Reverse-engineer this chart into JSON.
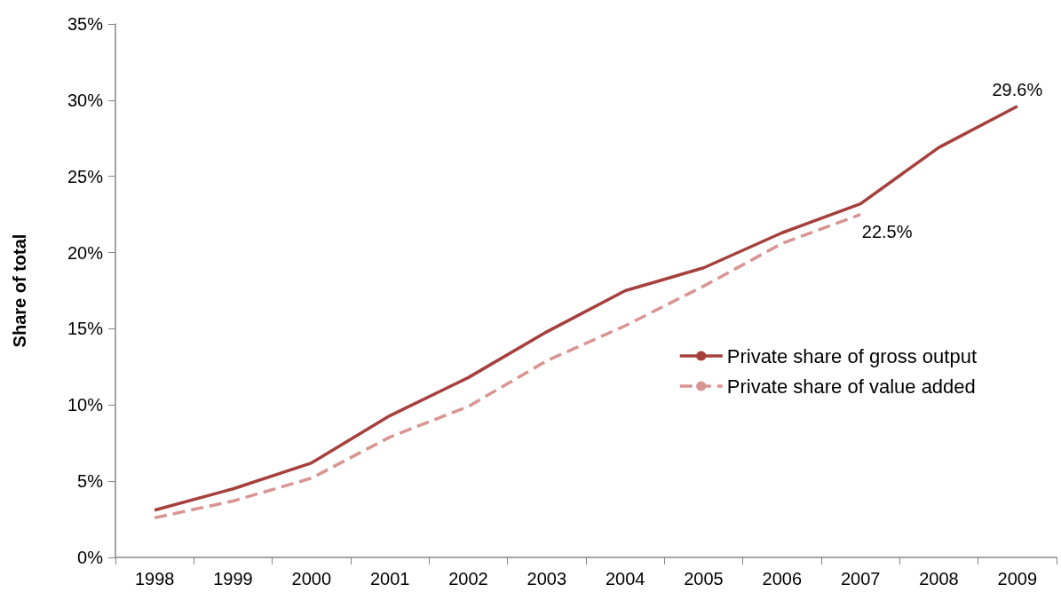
{
  "chart_data": {
    "type": "line",
    "ylabel": "Share of total",
    "categories": [
      "1998",
      "1999",
      "2000",
      "2001",
      "2002",
      "2003",
      "2004",
      "2005",
      "2006",
      "2007",
      "2008",
      "2009"
    ],
    "series": [
      {
        "name": "Private share of gross output",
        "color": "#a5403d",
        "line_style": "solid",
        "values": [
          3.1,
          4.5,
          6.2,
          9.3,
          11.8,
          14.8,
          17.5,
          19.0,
          21.3,
          23.2,
          26.9,
          29.6
        ],
        "value_labels": [
          null,
          null,
          null,
          null,
          null,
          null,
          null,
          null,
          null,
          null,
          null,
          "29.6%"
        ]
      },
      {
        "name": "Private share of value added",
        "color": "#d99594",
        "line_style": "dashed",
        "values": [
          2.6,
          3.7,
          5.2,
          7.9,
          9.9,
          12.9,
          15.2,
          17.8,
          20.6,
          22.5,
          null,
          null
        ],
        "value_labels": [
          null,
          null,
          null,
          null,
          null,
          null,
          null,
          null,
          null,
          "22.5%",
          null,
          null
        ]
      }
    ],
    "ylim": [
      0,
      35
    ],
    "yticks": [
      {
        "value": 0,
        "label": "0%"
      },
      {
        "value": 5,
        "label": "5%"
      },
      {
        "value": 10,
        "label": "10%"
      },
      {
        "value": 15,
        "label": "15%"
      },
      {
        "value": 20,
        "label": "20%"
      },
      {
        "value": 25,
        "label": "25%"
      },
      {
        "value": 30,
        "label": "30%"
      },
      {
        "value": 35,
        "label": "35%"
      }
    ],
    "grid": false,
    "legend": "right",
    "marker": "none"
  }
}
